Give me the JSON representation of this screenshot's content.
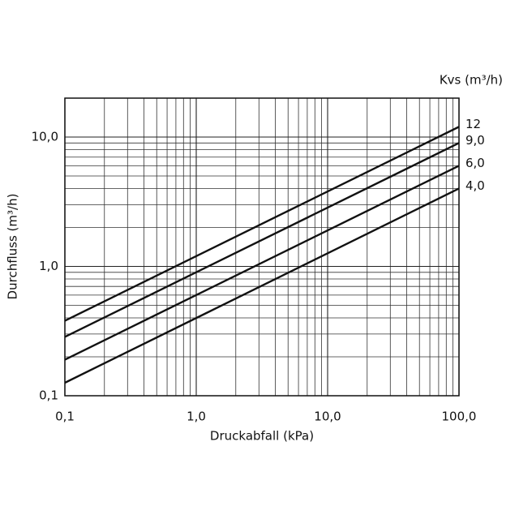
{
  "chart_data": {
    "type": "line",
    "xlabel": "Druckabfall (kPa)",
    "ylabel": "Durchfluss (m³/h)",
    "legend_title": "Kvs (m³/h)",
    "log_x": true,
    "log_y": true,
    "grid": true,
    "minor_grid": true,
    "xlim": [
      0.1,
      100
    ],
    "ylim": [
      0.1,
      20
    ],
    "xticks": [
      {
        "value": 0.1,
        "label": "0,1"
      },
      {
        "value": 1,
        "label": "1,0"
      },
      {
        "value": 10,
        "label": "10,0"
      },
      {
        "value": 100,
        "label": "100,0"
      }
    ],
    "yticks": [
      {
        "value": 0.1,
        "label": "0,1"
      },
      {
        "value": 1,
        "label": "1,0"
      },
      {
        "value": 10,
        "label": "10,0"
      }
    ],
    "x": [
      0.1,
      100
    ],
    "series": [
      {
        "name": "12",
        "color": "#111111",
        "values": [
          0.38,
          12
        ]
      },
      {
        "name": "9,0",
        "color": "#111111",
        "values": [
          0.285,
          9
        ]
      },
      {
        "name": "6,0",
        "color": "#111111",
        "values": [
          0.19,
          6
        ]
      },
      {
        "name": "4,0",
        "color": "#111111",
        "values": [
          0.126,
          4
        ]
      }
    ]
  }
}
